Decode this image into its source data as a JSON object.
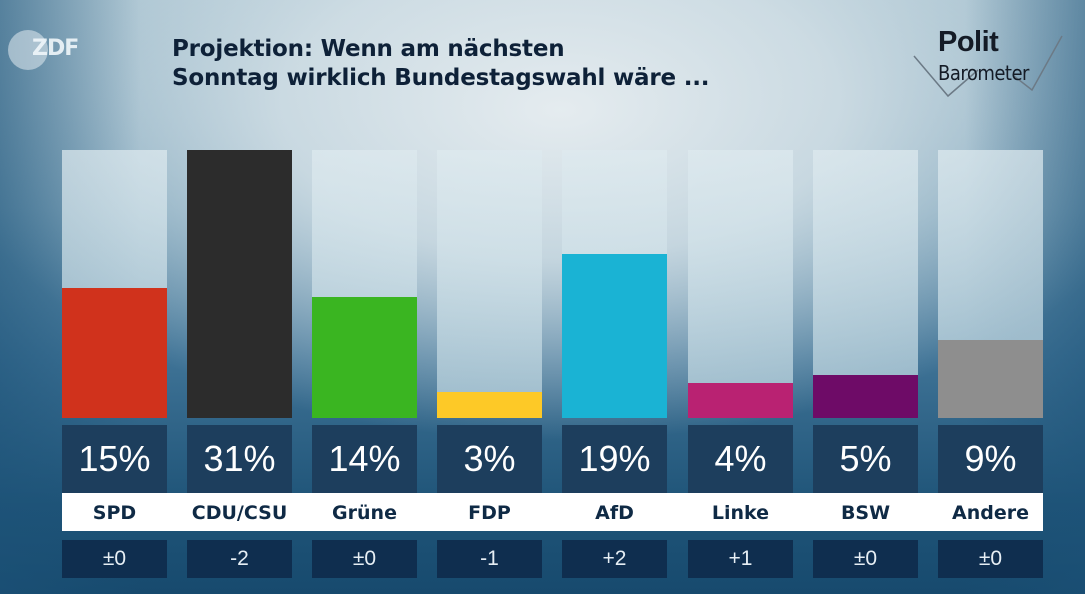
{
  "broadcaster_logo": "ZDF",
  "program_logo": {
    "line1": "Polit",
    "line2": "Barometer"
  },
  "chart_data": {
    "type": "bar",
    "title": "Projektion: Wenn am nächsten Sonntag wirklich Bundestagswahl wäre ...",
    "title_lines": [
      "Projektion: Wenn am nächsten",
      "Sonntag wirklich Bundestagswahl wäre ..."
    ],
    "xlabel": "",
    "ylabel": "",
    "ylim": [
      0,
      31
    ],
    "unit": "%",
    "grid": false,
    "legend": "none",
    "categories": [
      "SPD",
      "CDU/CSU",
      "Grüne",
      "FDP",
      "AfD",
      "Linke",
      "BSW",
      "Andere"
    ],
    "values": [
      15,
      31,
      14,
      3,
      19,
      4,
      5,
      9
    ],
    "value_labels": [
      "15%",
      "31%",
      "14%",
      "3%",
      "19%",
      "4%",
      "5%",
      "9%"
    ],
    "changes": [
      "±0",
      "-2",
      "±0",
      "-1",
      "+2",
      "+1",
      "±0",
      "±0"
    ],
    "colors": [
      "#d0321c",
      "#2c2c2c",
      "#3ab521",
      "#fdc927",
      "#1ab3d4",
      "#b92272",
      "#6e0b67",
      "#8e8e8e"
    ]
  }
}
